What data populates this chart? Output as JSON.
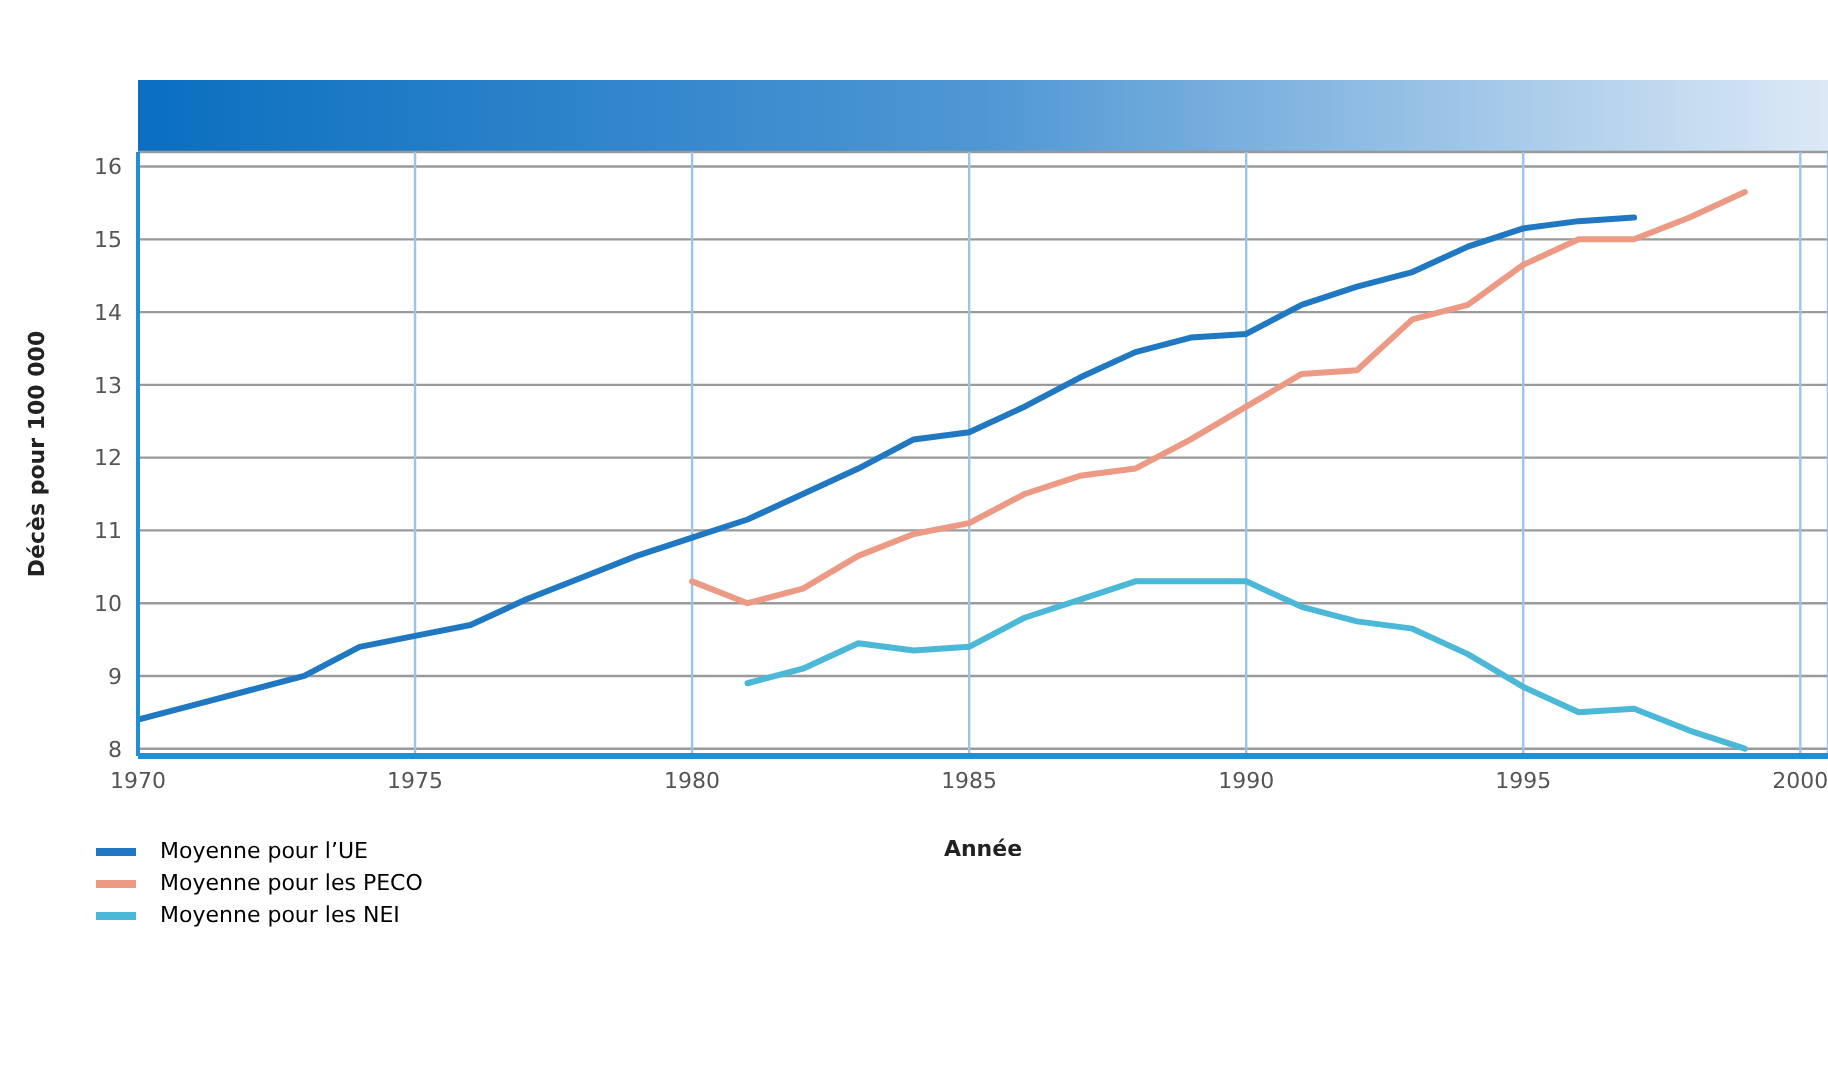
{
  "chart_data": {
    "type": "line",
    "xlabel": "Année",
    "ylabel": "Décès pour 100 000",
    "xlim": [
      1970,
      2000.5
    ],
    "xticks": [
      1970,
      1975,
      1980,
      1985,
      1990,
      1995,
      2000
    ],
    "ylim": [
      7.9,
      16.2
    ],
    "yticks": [
      8,
      9,
      10,
      11,
      12,
      13,
      14,
      15,
      16
    ],
    "grid": true,
    "legend": "bottom left",
    "marker": "none",
    "line_style": "solid",
    "series": [
      {
        "name": "Moyenne pour l’UE",
        "color": "#1f78c1",
        "x": [
          1970,
          1971,
          1972,
          1973,
          1974,
          1975,
          1976,
          1977,
          1978,
          1979,
          1980,
          1981,
          1982,
          1983,
          1984,
          1985,
          1986,
          1987,
          1988,
          1989,
          1990,
          1991,
          1992,
          1993,
          1994,
          1995,
          1996,
          1997
        ],
        "values": [
          8.4,
          8.6,
          8.8,
          9.0,
          9.4,
          9.55,
          9.7,
          10.05,
          10.35,
          10.65,
          10.9,
          11.15,
          11.5,
          11.85,
          12.25,
          12.35,
          12.7,
          13.1,
          13.45,
          13.65,
          13.7,
          14.1,
          14.35,
          14.55,
          14.9,
          15.15,
          15.25,
          15.3
        ]
      },
      {
        "name": "Moyenne pour les PECO",
        "color": "#ec9a84",
        "x": [
          1980,
          1981,
          1982,
          1983,
          1984,
          1985,
          1986,
          1987,
          1988,
          1989,
          1990,
          1991,
          1992,
          1993,
          1994,
          1995,
          1996,
          1997,
          1998,
          1999
        ],
        "values": [
          10.3,
          10.0,
          10.2,
          10.65,
          10.95,
          11.1,
          11.5,
          11.75,
          11.85,
          12.25,
          12.7,
          13.15,
          13.2,
          13.9,
          14.1,
          14.65,
          15.0,
          15.0,
          15.3,
          15.65
        ]
      },
      {
        "name": "Moyenne pour les NEI",
        "color": "#4ab8d6",
        "x": [
          1981,
          1982,
          1983,
          1984,
          1985,
          1986,
          1987,
          1988,
          1989,
          1990,
          1991,
          1992,
          1993,
          1994,
          1995,
          1996,
          1997,
          1998,
          1999
        ],
        "values": [
          8.9,
          9.1,
          9.45,
          9.35,
          9.4,
          9.8,
          10.05,
          10.3,
          10.3,
          10.3,
          9.95,
          9.75,
          9.65,
          9.3,
          8.85,
          8.5,
          8.55,
          8.25,
          8.0
        ]
      }
    ]
  }
}
